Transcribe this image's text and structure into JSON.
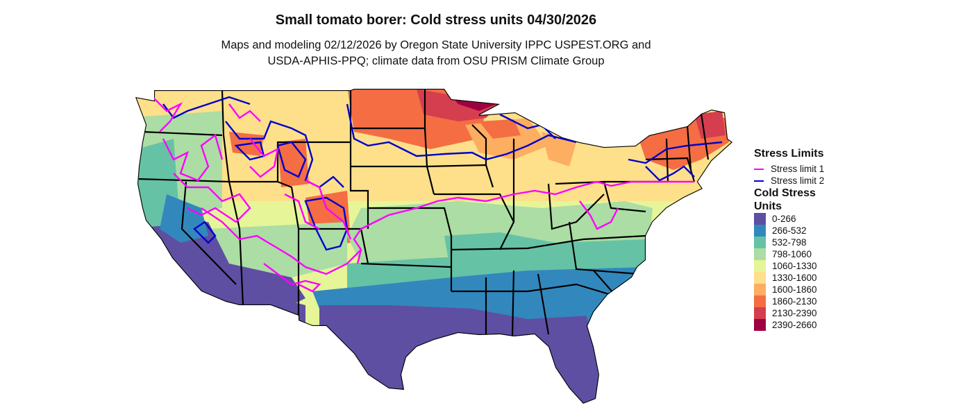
{
  "title": "Small tomato borer: Cold stress units 04/30/2026",
  "subtitle_line1": "Maps and modeling 02/12/2026 by Oregon State University IPPC USPEST.ORG and",
  "subtitle_line2": "USDA-APHIS-PPQ; climate data from OSU PRISM Climate Group",
  "legend": {
    "limits_title": "Stress Limits",
    "limits": [
      {
        "label": "Stress limit 1",
        "color": "#ff00ff"
      },
      {
        "label": "Stress limit 2",
        "color": "#0000cc"
      }
    ],
    "units_title": "Cold Stress Units",
    "units": [
      {
        "label": "0-266",
        "color": "#5e4fa2"
      },
      {
        "label": "266-532",
        "color": "#3288bd"
      },
      {
        "label": "532-798",
        "color": "#66c2a5"
      },
      {
        "label": "798-1060",
        "color": "#abdda4"
      },
      {
        "label": "1060-1330",
        "color": "#e6f598"
      },
      {
        "label": "1330-1600",
        "color": "#fee08b"
      },
      {
        "label": "1600-1860",
        "color": "#fdae61"
      },
      {
        "label": "1860-2130",
        "color": "#f46d43"
      },
      {
        "label": "2130-2390",
        "color": "#d53e4f"
      },
      {
        "label": "2390-2660",
        "color": "#9e0142"
      }
    ]
  }
}
